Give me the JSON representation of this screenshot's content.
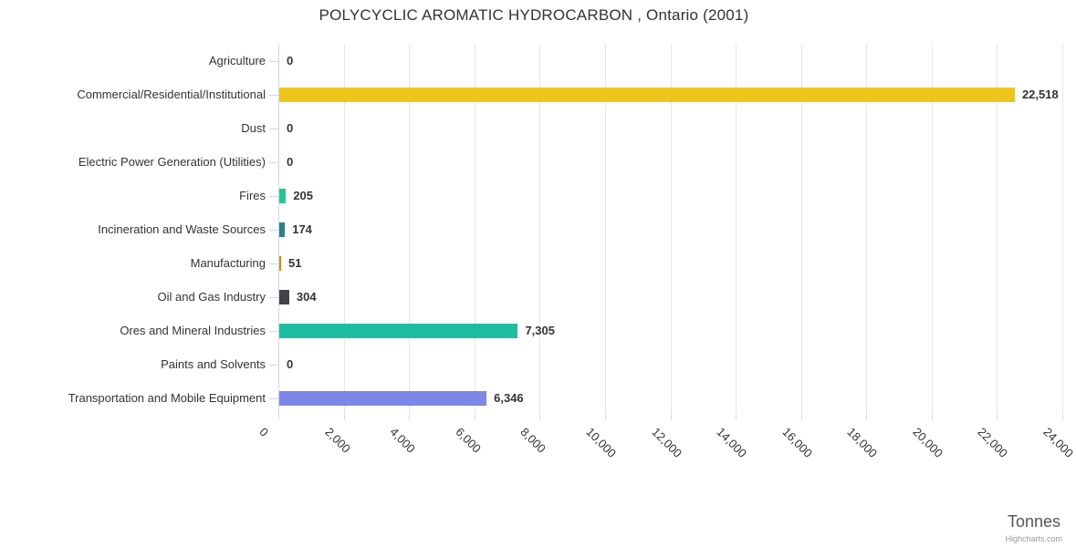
{
  "title": "POLYCYCLIC AROMATIC HYDROCARBON , Ontario (2001)",
  "value_axis_title": "Tonnes",
  "credits_label": "Highcharts.com",
  "chart_data": {
    "type": "bar",
    "orientation": "horizontal",
    "title": "POLYCYCLIC AROMATIC HYDROCARBON , Ontario (2001)",
    "xlabel": "Tonnes",
    "ylabel": "",
    "legend": false,
    "grid": true,
    "categories": [
      "Agriculture",
      "Commercial/Residential/Institutional",
      "Dust",
      "Electric Power Generation (Utilities)",
      "Fires",
      "Incineration and Waste Sources",
      "Manufacturing",
      "Oil and Gas Industry",
      "Ores and Mineral Industries",
      "Paints and Solvents",
      "Transportation and Mobile Equipment"
    ],
    "values": [
      0,
      22518,
      0,
      0,
      205,
      174,
      51,
      304,
      7305,
      0,
      6346
    ],
    "value_labels": [
      "0",
      "22,518",
      "0",
      "0",
      "205",
      "174",
      "51",
      "304",
      "7,305",
      "0",
      "6,346"
    ],
    "point_colors": [
      null,
      "#eec51b",
      null,
      null,
      "#24c68f",
      "#2b8087",
      "#e8830d",
      "#414146",
      "#1ebd9e",
      null,
      "#7e87e8"
    ],
    "axis": {
      "min": 0,
      "max": 24000,
      "tick_interval": 2000,
      "tick_labels": [
        "0",
        "2,000",
        "4,000",
        "6,000",
        "8,000",
        "10,000",
        "12,000",
        "14,000",
        "16,000",
        "18,000",
        "20,000",
        "22,000",
        "24,000"
      ]
    },
    "colors_meta": {
      "gridline": "#e6e6e6",
      "axis_line": "#ccd6eb",
      "text": "#333333"
    }
  }
}
